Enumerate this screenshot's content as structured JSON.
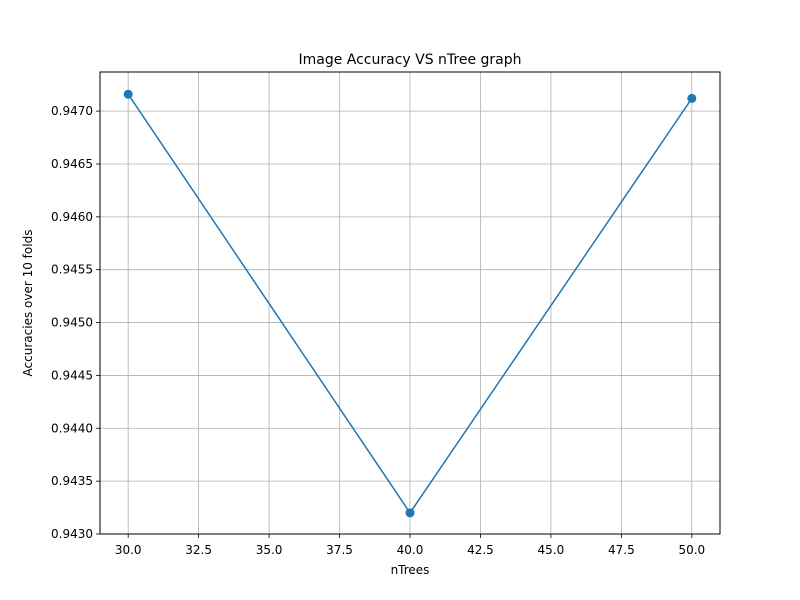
{
  "chart_data": {
    "type": "line",
    "title": "Image Accuracy VS nTree graph",
    "xlabel": "nTrees",
    "ylabel": "Accuracies over 10 folds",
    "x": [
      30,
      40,
      50
    ],
    "series": [
      {
        "values": [
          0.94716,
          0.9432,
          0.94712
        ]
      }
    ],
    "xlim": [
      29.0,
      51.0
    ],
    "ylim": [
      0.943,
      0.94737
    ],
    "xticks": [
      "30.0",
      "32.5",
      "35.0",
      "37.5",
      "40.0",
      "42.5",
      "45.0",
      "47.5",
      "50.0"
    ],
    "yticks": [
      "0.9430",
      "0.9435",
      "0.9440",
      "0.9445",
      "0.9450",
      "0.9455",
      "0.9460",
      "0.9465",
      "0.9470"
    ],
    "grid": true,
    "marker": "circle",
    "line_color": "#1f77b4"
  }
}
